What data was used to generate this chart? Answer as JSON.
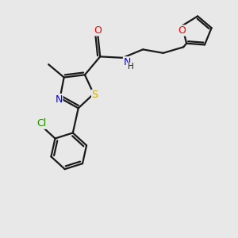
{
  "background_color": "#e8e8e8",
  "bond_color": "#1a1a1a",
  "atom_colors": {
    "O": "#ff0000",
    "N": "#0000ff",
    "S": "#ccaa00",
    "Cl": "#228800",
    "C": "#1a1a1a"
  },
  "figsize": [
    3.0,
    3.0
  ],
  "dpi": 100,
  "lw": 1.6,
  "fontsize": 9
}
